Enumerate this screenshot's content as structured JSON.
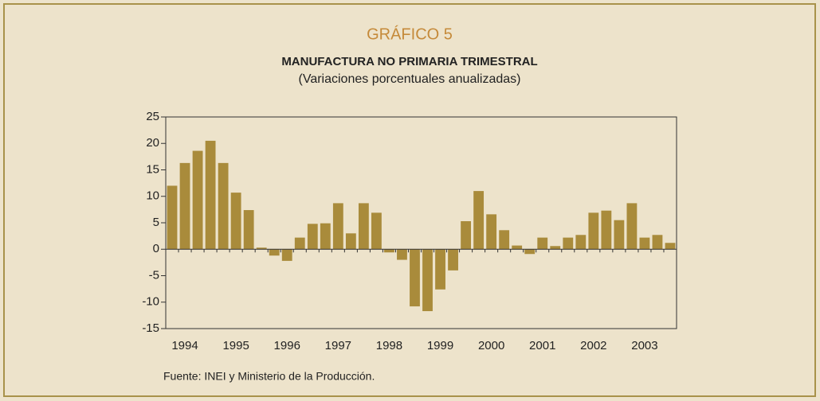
{
  "chart_data": {
    "type": "bar",
    "title": "GRÁFICO 5",
    "subtitle": "MANUFACTURA NO PRIMARIA TRIMESTRAL",
    "y_label": "(Variaciones porcentuales anualizadas)",
    "source": "Fuente: INEI y Ministerio de la Producción.",
    "categories": [
      null,
      "1994",
      null,
      null,
      null,
      "1995",
      null,
      null,
      null,
      "1996",
      null,
      null,
      null,
      "1997",
      null,
      null,
      null,
      "1998",
      null,
      null,
      null,
      "1999",
      null,
      null,
      null,
      "2000",
      null,
      null,
      null,
      "2001",
      null,
      null,
      null,
      "2002",
      null,
      null,
      null,
      "2003",
      null,
      null
    ],
    "values": [
      12,
      16.3,
      18.6,
      20.5,
      16.3,
      10.7,
      7.4,
      0.3,
      -1.2,
      -2.2,
      2.2,
      4.8,
      4.9,
      8.7,
      3.0,
      8.7,
      6.9,
      -0.6,
      -2.0,
      -10.8,
      -11.7,
      -7.6,
      -4.0,
      5.3,
      11.0,
      6.6,
      3.6,
      0.7,
      -0.9,
      2.2,
      0.6,
      2.2,
      2.7,
      6.9,
      7.3,
      5.5,
      8.7,
      2.2,
      2.7,
      1.2
    ],
    "color": "#a98b3b",
    "ylim": [
      -15,
      25
    ],
    "yticks": [
      25,
      20,
      15,
      10,
      5,
      0,
      -5,
      -10,
      -15
    ],
    "grid": false
  }
}
